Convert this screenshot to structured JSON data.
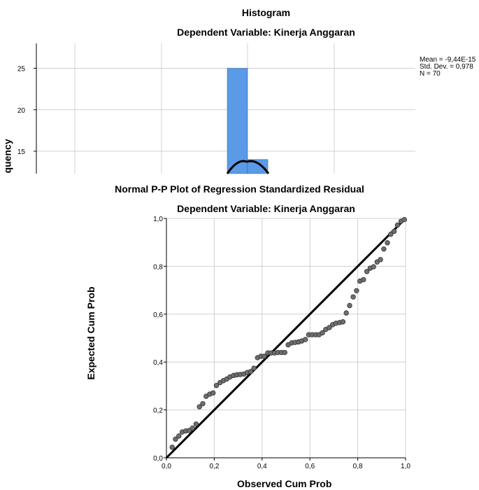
{
  "chart_data": [
    {
      "type": "bar",
      "title": "Histogram",
      "subtitle": "Dependent Variable: Kinerja Anggaran",
      "ylabel": "quency",
      "xlabel": "",
      "ylim": [
        12.3,
        28
      ],
      "yticks": [
        "15",
        "20",
        "25"
      ],
      "ytick_values": [
        15,
        20,
        25
      ],
      "bars": [
        {
          "x_start": 0.0,
          "x_end": 0.25,
          "value": 25
        },
        {
          "x_start": 0.25,
          "x_end": 0.5,
          "value": 14
        }
      ],
      "stats": {
        "mean": "Mean = -9,44E-15",
        "std_dev": "Std. Dev. = 0,978",
        "n": "N = 70"
      },
      "bar_color": "#5a9ae6",
      "curve_color": "#000000",
      "grid": true
    },
    {
      "type": "scatter",
      "title": "Normal P-P Plot of Regression Standardized Residual",
      "subtitle": "Dependent Variable: Kinerja Anggaran",
      "xlabel": "Observed Cum Prob",
      "ylabel": "Expected Cum Prob",
      "xlim": [
        0,
        1
      ],
      "ylim": [
        0,
        1
      ],
      "xticks": [
        "0,0",
        "0,2",
        "0,4",
        "0,6",
        "0,8",
        "1,0"
      ],
      "yticks": [
        "0,0",
        "0,2",
        "0,4",
        "0,6",
        "0,8",
        "1,0"
      ],
      "tick_values": [
        0,
        0.2,
        0.4,
        0.6,
        0.8,
        1.0
      ],
      "reference_line": [
        [
          0,
          0
        ],
        [
          1,
          1
        ]
      ],
      "point_color": "#6e6e6e",
      "grid": true,
      "points": [
        [
          0.024,
          0.044
        ],
        [
          0.038,
          0.078
        ],
        [
          0.052,
          0.091
        ],
        [
          0.066,
          0.108
        ],
        [
          0.081,
          0.112
        ],
        [
          0.095,
          0.114
        ],
        [
          0.109,
          0.124
        ],
        [
          0.124,
          0.141
        ],
        [
          0.138,
          0.213
        ],
        [
          0.152,
          0.226
        ],
        [
          0.166,
          0.257
        ],
        [
          0.181,
          0.266
        ],
        [
          0.195,
          0.271
        ],
        [
          0.209,
          0.302
        ],
        [
          0.224,
          0.314
        ],
        [
          0.238,
          0.322
        ],
        [
          0.252,
          0.329
        ],
        [
          0.266,
          0.338
        ],
        [
          0.281,
          0.344
        ],
        [
          0.295,
          0.347
        ],
        [
          0.309,
          0.348
        ],
        [
          0.324,
          0.35
        ],
        [
          0.338,
          0.356
        ],
        [
          0.352,
          0.36
        ],
        [
          0.366,
          0.374
        ],
        [
          0.381,
          0.418
        ],
        [
          0.395,
          0.424
        ],
        [
          0.409,
          0.424
        ],
        [
          0.424,
          0.438
        ],
        [
          0.438,
          0.438
        ],
        [
          0.452,
          0.438
        ],
        [
          0.466,
          0.44
        ],
        [
          0.481,
          0.44
        ],
        [
          0.495,
          0.44
        ],
        [
          0.509,
          0.472
        ],
        [
          0.524,
          0.48
        ],
        [
          0.538,
          0.482
        ],
        [
          0.552,
          0.484
        ],
        [
          0.566,
          0.488
        ],
        [
          0.581,
          0.494
        ],
        [
          0.595,
          0.514
        ],
        [
          0.609,
          0.514
        ],
        [
          0.624,
          0.514
        ],
        [
          0.638,
          0.514
        ],
        [
          0.652,
          0.522
        ],
        [
          0.666,
          0.536
        ],
        [
          0.681,
          0.544
        ],
        [
          0.695,
          0.556
        ],
        [
          0.709,
          0.562
        ],
        [
          0.724,
          0.565
        ],
        [
          0.738,
          0.568
        ],
        [
          0.752,
          0.605
        ],
        [
          0.766,
          0.636
        ],
        [
          0.781,
          0.672
        ],
        [
          0.795,
          0.698
        ],
        [
          0.809,
          0.738
        ],
        [
          0.824,
          0.744
        ],
        [
          0.838,
          0.778
        ],
        [
          0.852,
          0.792
        ],
        [
          0.866,
          0.798
        ],
        [
          0.881,
          0.818
        ],
        [
          0.895,
          0.828
        ],
        [
          0.909,
          0.872
        ],
        [
          0.924,
          0.898
        ],
        [
          0.938,
          0.934
        ],
        [
          0.952,
          0.946
        ],
        [
          0.966,
          0.972
        ],
        [
          0.981,
          0.988
        ],
        [
          0.995,
          0.995
        ]
      ]
    }
  ]
}
